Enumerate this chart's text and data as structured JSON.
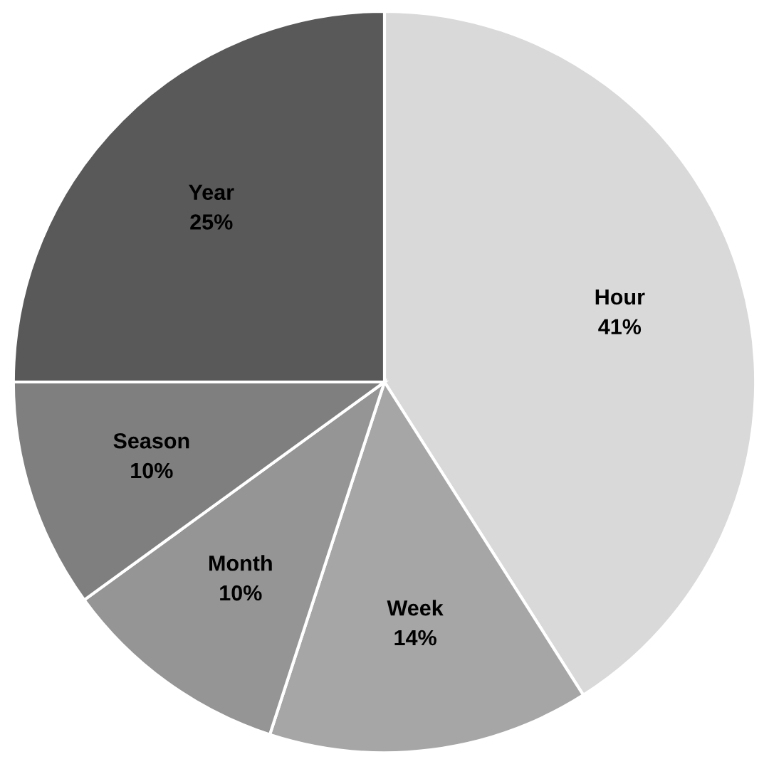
{
  "chart_data": {
    "type": "pie",
    "categories": [
      "Hour",
      "Week",
      "Month",
      "Season",
      "Year"
    ],
    "values": [
      41,
      14,
      10,
      10,
      25
    ],
    "colors": [
      "#d9d9d9",
      "#a6a6a6",
      "#959595",
      "#7f7f7f",
      "#595959"
    ],
    "value_labels": [
      "41%",
      "14%",
      "10%",
      "10%",
      "25%"
    ],
    "legend": false
  }
}
